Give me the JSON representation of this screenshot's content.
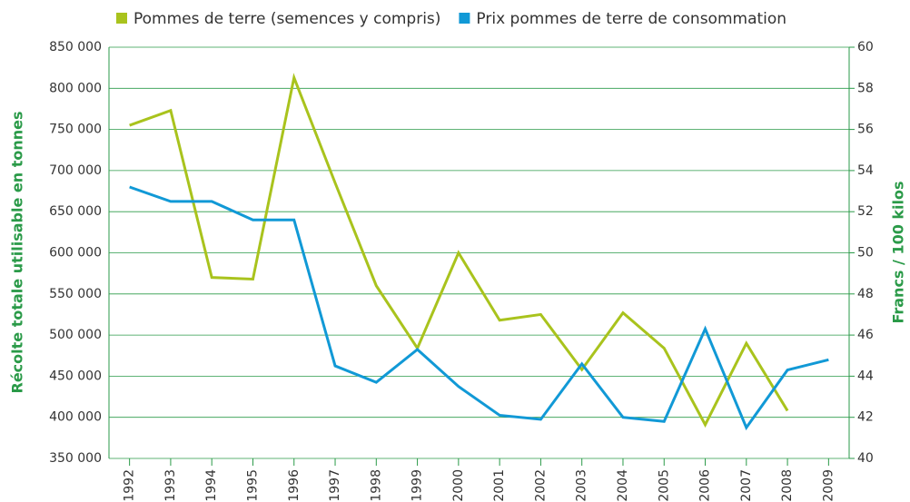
{
  "chart_data": {
    "type": "line",
    "categories": [
      "1992",
      "1993",
      "1994",
      "1995",
      "1996",
      "1997",
      "1998",
      "1999",
      "2000",
      "2001",
      "2002",
      "2003",
      "2004",
      "2005",
      "2006",
      "2007",
      "2008",
      "2009"
    ],
    "series": [
      {
        "name": "Pommes de terre (semences y compris)",
        "color": "#a9c31d",
        "axis": "y",
        "values": [
          755000,
          773000,
          570000,
          568000,
          813000,
          685000,
          560000,
          484000,
          600000,
          518000,
          525000,
          458000,
          527000,
          484000,
          391000,
          490000,
          408000,
          null
        ]
      },
      {
        "name": "Prix pommes de terre de consommation",
        "color": "#1199d6",
        "axis": "y2",
        "values": [
          53.2,
          52.5,
          52.5,
          51.6,
          51.6,
          44.5,
          43.7,
          45.3,
          43.5,
          42.1,
          41.9,
          44.6,
          42.0,
          41.8,
          46.3,
          41.5,
          44.3,
          44.8
        ]
      }
    ],
    "ylabel": "Récolte totale utilisable en tonnes",
    "y2label": "Francs / 100 kilos",
    "ylim": [
      350000,
      850000
    ],
    "yticks": [
      {
        "value": 350000,
        "label": "350 000"
      },
      {
        "value": 400000,
        "label": "400 000"
      },
      {
        "value": 450000,
        "label": "450 000"
      },
      {
        "value": 500000,
        "label": "500 000"
      },
      {
        "value": 550000,
        "label": "550 000"
      },
      {
        "value": 600000,
        "label": "600 000"
      },
      {
        "value": 650000,
        "label": "650 000"
      },
      {
        "value": 700000,
        "label": "700 000"
      },
      {
        "value": 750000,
        "label": "750 000"
      },
      {
        "value": 800000,
        "label": "800 000"
      },
      {
        "value": 850000,
        "label": "850 000"
      }
    ],
    "y2lim": [
      40,
      60
    ],
    "y2ticks": [
      40,
      42,
      44,
      46,
      48,
      50,
      52,
      54,
      56,
      58,
      60
    ],
    "grid": true,
    "legend": "top"
  }
}
